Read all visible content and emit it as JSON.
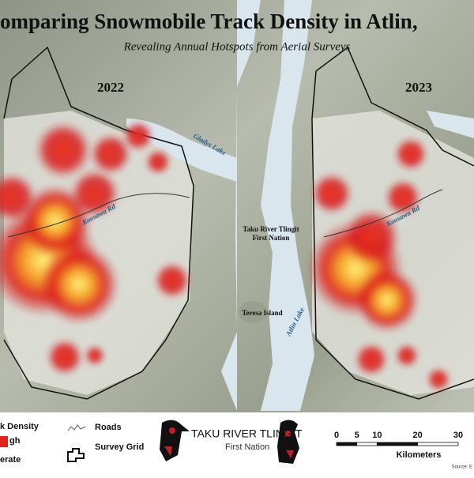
{
  "header": {
    "title": "omparing Snowmobile Track Density in Atlin,",
    "subtitle": "Revealing Annual Hotspots from Aerial Surveys"
  },
  "panels": [
    {
      "year": "2022",
      "labels": [
        "Gladys Lake",
        "Koosawa Rd"
      ]
    },
    {
      "year": "2023",
      "labels": [
        "Koosawa Rd"
      ]
    }
  ],
  "places": [
    "Taku River Tlingit",
    "First Nation",
    "Teresa Island",
    "Atlin Lake"
  ],
  "legend": {
    "density_title": "k Density",
    "high": "gh",
    "moderate": "erate",
    "roads": "Roads",
    "grid": "Survey Grid"
  },
  "logo": {
    "name": "TAKU RIVER TLINGIT",
    "sub": "First Nation"
  },
  "scale_bar": {
    "ticks": [
      0,
      5,
      10,
      20,
      30
    ],
    "unit": "Kilometers"
  },
  "source": "Source: E"
}
